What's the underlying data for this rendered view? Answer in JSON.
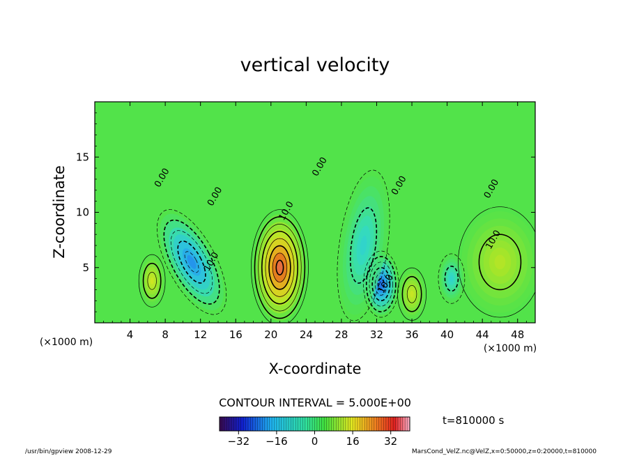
{
  "chart_data": {
    "type": "heatmap",
    "title": "vertical velocity",
    "xlabel": "X-coordinate",
    "ylabel": "Z-coordinate",
    "x_unit": "(×1000 m)",
    "y_unit": "(×1000 m)",
    "xlim": [
      0,
      50
    ],
    "ylim": [
      0,
      20
    ],
    "x_ticks": [
      4,
      8,
      12,
      16,
      20,
      24,
      28,
      32,
      36,
      40,
      44,
      48
    ],
    "y_ticks": [
      5,
      10,
      15
    ],
    "contour_interval_text": "CONTOUR INTERVAL = 5.000E+00",
    "contour_labels": [
      {
        "text": "0.00",
        "x": 7.9,
        "y": 13.0
      },
      {
        "text": "0.00",
        "x": 13.9,
        "y": 11.3
      },
      {
        "text": "0.00",
        "x": 25.8,
        "y": 14.0
      },
      {
        "text": "0.00",
        "x": 34.8,
        "y": 12.3
      },
      {
        "text": "0.00",
        "x": 45.3,
        "y": 12.0
      },
      {
        "text": "10.0",
        "x": 22.0,
        "y": 10.0
      },
      {
        "text": "10.0",
        "x": 13.5,
        "y": 5.4
      },
      {
        "text": "10.0",
        "x": 33.3,
        "y": 3.4
      },
      {
        "text": "10.0",
        "x": 45.5,
        "y": 7.4
      }
    ],
    "features": [
      {
        "kind": "max",
        "x": 21.0,
        "y": 5.0,
        "value": 40
      },
      {
        "kind": "max",
        "x": 6.5,
        "y": 3.8,
        "value": 16
      },
      {
        "kind": "max",
        "x": 36.0,
        "y": 2.6,
        "value": 15
      },
      {
        "kind": "max",
        "x": 46.0,
        "y": 5.5,
        "value": 12
      },
      {
        "kind": "min",
        "x": 11.0,
        "y": 5.5,
        "value": -25
      },
      {
        "kind": "min",
        "x": 32.5,
        "y": 3.5,
        "value": -30
      },
      {
        "kind": "min",
        "x": 40.5,
        "y": 4.0,
        "value": -12
      },
      {
        "kind": "min",
        "x": 30.5,
        "y": 7.0,
        "value": -12
      }
    ],
    "colorbar": {
      "min": -40,
      "max": 40,
      "ticks": [
        -32,
        -16,
        0,
        16,
        32
      ]
    },
    "time_label": "t=810000 s",
    "footer_left": "/usr/bin/gpview   2008-12-29",
    "footer_right": "MarsCond_VelZ.nc@VelZ,x=0:50000,z=0:20000,t=810000"
  }
}
